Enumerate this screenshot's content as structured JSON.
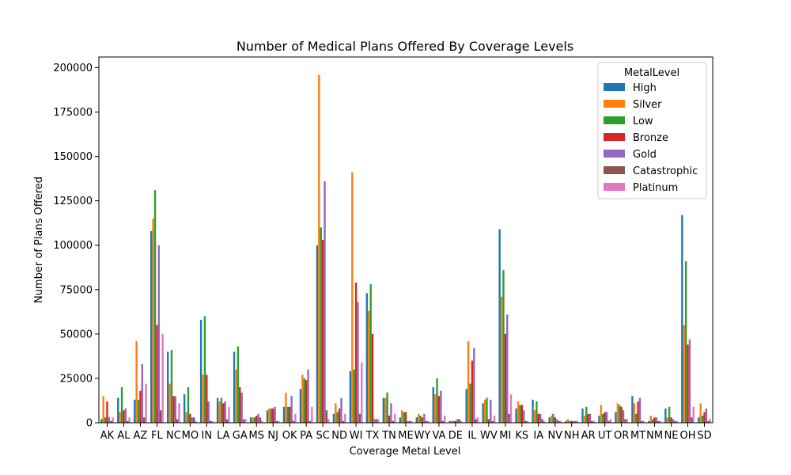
{
  "chart_data": {
    "type": "bar",
    "title": "Number of Medical Plans Offered By Coverage Levels",
    "xlabel": "Coverage Metal Level",
    "ylabel": "Number of Plans Offered",
    "ylim": [
      0,
      206000
    ],
    "yticks": [
      0,
      25000,
      50000,
      75000,
      100000,
      125000,
      150000,
      175000,
      200000
    ],
    "grid": false,
    "legend": {
      "title": "MetalLevel",
      "placement": "top-right"
    },
    "categories": [
      "AK",
      "AL",
      "AZ",
      "FL",
      "NC",
      "MO",
      "IN",
      "LA",
      "GA",
      "MS",
      "NJ",
      "OK",
      "PA",
      "SC",
      "ND",
      "WI",
      "TX",
      "TN",
      "ME",
      "WY",
      "VA",
      "DE",
      "IL",
      "WV",
      "MI",
      "KS",
      "IA",
      "NV",
      "NH",
      "AR",
      "UT",
      "OR",
      "MT",
      "NM",
      "NE",
      "OH",
      "SD"
    ],
    "series": [
      {
        "name": "High",
        "color": "#1f77b4",
        "values": [
          2000,
          14000,
          13000,
          108000,
          40000,
          16000,
          58000,
          14000,
          40000,
          3000,
          7000,
          9000,
          19000,
          100000,
          5000,
          29000,
          73000,
          14000,
          3000,
          3000,
          20000,
          1000,
          19000,
          11000,
          109000,
          8000,
          13000,
          3000,
          1000,
          8000,
          4000,
          6000,
          15000,
          1000,
          8000,
          117000,
          3000
        ]
      },
      {
        "name": "Silver",
        "color": "#ff7f0e",
        "values": [
          15000,
          6000,
          46000,
          115000,
          22000,
          6000,
          27000,
          12000,
          30000,
          3000,
          8000,
          17000,
          27000,
          196000,
          11000,
          141000,
          63000,
          14000,
          7000,
          5000,
          16000,
          1000,
          46000,
          13000,
          71000,
          12000,
          7000,
          4000,
          2000,
          4000,
          10000,
          11000,
          11000,
          4000,
          3000,
          55000,
          11000
        ]
      },
      {
        "name": "Low",
        "color": "#2ca02c",
        "values": [
          3000,
          20000,
          13000,
          131000,
          41000,
          20000,
          60000,
          14000,
          43000,
          3000,
          8000,
          9000,
          25000,
          110000,
          6000,
          30000,
          78000,
          17000,
          6000,
          4000,
          25000,
          1000,
          22000,
          14000,
          86000,
          10000,
          12000,
          5000,
          1000,
          9000,
          5000,
          10000,
          5000,
          2000,
          9000,
          91000,
          4000
        ]
      },
      {
        "name": "Bronze",
        "color": "#d62728",
        "values": [
          12000,
          7000,
          18000,
          55000,
          15000,
          5000,
          27000,
          11000,
          20000,
          4000,
          8000,
          9000,
          24000,
          103000,
          8000,
          79000,
          50000,
          4000,
          6000,
          3000,
          15000,
          1000,
          35000,
          2000,
          50000,
          10000,
          5000,
          3000,
          1000,
          5000,
          6000,
          9000,
          12000,
          3000,
          3000,
          44000,
          6000
        ]
      },
      {
        "name": "Gold",
        "color": "#9467bd",
        "values": [
          3000,
          8000,
          33000,
          100000,
          15000,
          3000,
          12000,
          12000,
          17000,
          5000,
          9000,
          15000,
          30000,
          136000,
          14000,
          68000,
          2000,
          11000,
          1000,
          5000,
          18000,
          2000,
          42000,
          13000,
          61000,
          7000,
          5000,
          2000,
          1000,
          5000,
          6000,
          7000,
          14000,
          3000,
          2000,
          47000,
          8000
        ]
      },
      {
        "name": "Catastrophic",
        "color": "#8c564b",
        "values": [
          1000,
          1000,
          3000,
          7000,
          2000,
          3000,
          1000,
          2000,
          2000,
          3000,
          1000,
          1000,
          1000,
          7000,
          1000,
          5000,
          2000,
          1000,
          1000,
          1000,
          1000,
          2000,
          2000,
          1000,
          5000,
          1000,
          2000,
          1000,
          1000,
          1000,
          1000,
          2000,
          1000,
          1000,
          1000,
          3000,
          1000
        ]
      },
      {
        "name": "Platinum",
        "color": "#e377c2",
        "values": [
          3000,
          3000,
          22000,
          50000,
          11000,
          1000,
          1000,
          9000,
          2000,
          1000,
          1000,
          5000,
          9000,
          2000,
          5000,
          34000,
          2000,
          5000,
          1000,
          1000,
          4000,
          1000,
          3000,
          4000,
          16000,
          1000,
          1000,
          1000,
          1000,
          1000,
          2000,
          2000,
          1000,
          1000,
          1000,
          9000,
          2000
        ]
      }
    ]
  }
}
